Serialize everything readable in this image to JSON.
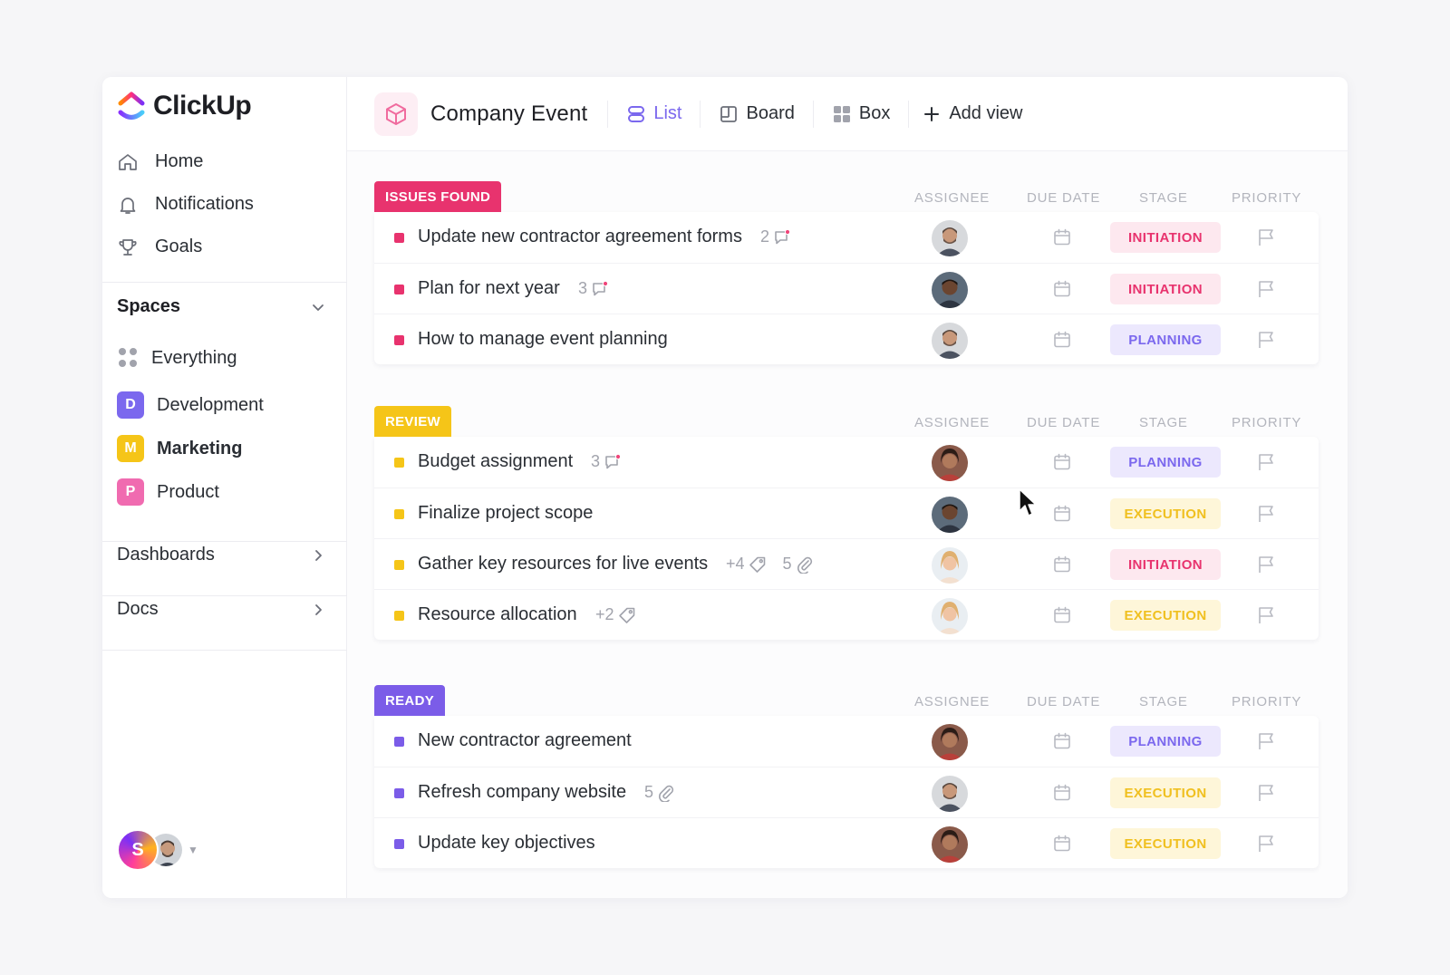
{
  "app": {
    "name": "ClickUp"
  },
  "colors": {
    "accent": "#7b68ee",
    "issues": "#e8336e",
    "review": "#f5c518",
    "ready": "#7b5ce8",
    "initiation_bg": "#fde8ef",
    "initiation_fg": "#e8336e",
    "planning_bg": "#ece8fd",
    "planning_fg": "#7b68ee",
    "execution_bg": "#fef6d9",
    "execution_fg": "#f0c020"
  },
  "nav": [
    {
      "label": "Home",
      "icon": "home-icon"
    },
    {
      "label": "Notifications",
      "icon": "bell-icon"
    },
    {
      "label": "Goals",
      "icon": "trophy-icon"
    }
  ],
  "spaces": {
    "title": "Spaces",
    "items": [
      {
        "label": "Everything"
      },
      {
        "label": "Development",
        "badge": "D",
        "color": "#7b68ee"
      },
      {
        "label": "Marketing",
        "badge": "M",
        "color": "#f5c518"
      },
      {
        "label": "Product",
        "badge": "P",
        "color": "#f06bb0"
      }
    ]
  },
  "sections": {
    "dashboards": "Dashboards",
    "docs": "Docs"
  },
  "user": {
    "initial": "S"
  },
  "header": {
    "project": "Company Event",
    "views": [
      {
        "label": "List",
        "icon": "list-icon",
        "active": true
      },
      {
        "label": "Board",
        "icon": "board-icon"
      },
      {
        "label": "Box",
        "icon": "box-grid-icon"
      },
      {
        "label": "Add view",
        "icon": "plus-icon"
      }
    ]
  },
  "columns": {
    "assignee": "ASSIGNEE",
    "due_date": "DUE DATE",
    "stage": "STAGE",
    "priority": "PRIORITY"
  },
  "groups": [
    {
      "tag": "ISSUES FOUND",
      "color": "#e8336e",
      "tasks": [
        {
          "name": "Update new contractor agreement forms",
          "meta": [
            {
              "count": "2",
              "icon": "comment-icon"
            }
          ],
          "assignee": "man-beard",
          "stage": "INITIATION"
        },
        {
          "name": "Plan for next year",
          "meta": [
            {
              "count": "3",
              "icon": "comment-icon"
            }
          ],
          "assignee": "man-dark",
          "stage": "INITIATION"
        },
        {
          "name": "How to manage event planning",
          "meta": [],
          "assignee": "man-beard",
          "stage": "PLANNING"
        }
      ]
    },
    {
      "tag": "REVIEW",
      "color": "#f5c518",
      "tasks": [
        {
          "name": "Budget assignment",
          "meta": [
            {
              "count": "3",
              "icon": "comment-icon"
            }
          ],
          "assignee": "woman-dark",
          "stage": "PLANNING"
        },
        {
          "name": "Finalize project scope",
          "meta": [],
          "assignee": "man-dark",
          "stage": "EXECUTION"
        },
        {
          "name": "Gather key resources for live events",
          "meta": [
            {
              "count": "+4",
              "icon": "tag-icon"
            },
            {
              "count": "5",
              "icon": "paperclip-icon"
            }
          ],
          "assignee": "woman-blonde",
          "stage": "INITIATION"
        },
        {
          "name": "Resource allocation",
          "meta": [
            {
              "count": "+2",
              "icon": "tag-icon"
            }
          ],
          "assignee": "woman-blonde",
          "stage": "EXECUTION"
        }
      ]
    },
    {
      "tag": "READY",
      "color": "#7b5ce8",
      "tasks": [
        {
          "name": "New contractor agreement",
          "meta": [],
          "assignee": "woman-dark",
          "stage": "PLANNING"
        },
        {
          "name": "Refresh company website",
          "meta": [
            {
              "count": "5",
              "icon": "paperclip-icon"
            }
          ],
          "assignee": "man-beard",
          "stage": "EXECUTION"
        },
        {
          "name": "Update key objectives",
          "meta": [],
          "assignee": "woman-dark",
          "stage": "EXECUTION"
        }
      ]
    }
  ]
}
